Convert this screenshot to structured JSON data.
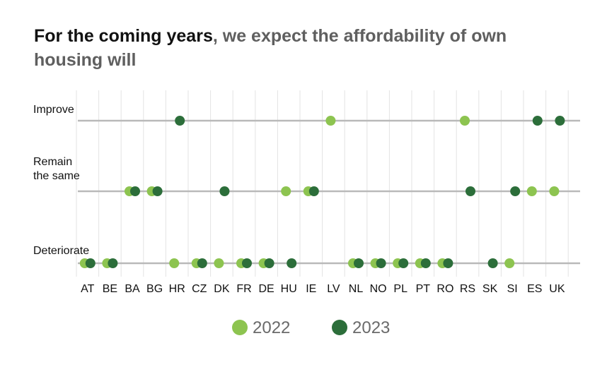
{
  "header": {
    "title_strong": "For the coming years",
    "title_rest": ", we expect the affordability of own housing will"
  },
  "chart_data": {
    "type": "scatter",
    "title": "For the coming years, we expect the affordability of own housing will",
    "categories_x": [
      "AT",
      "BE",
      "BA",
      "BG",
      "HR",
      "CZ",
      "DK",
      "FR",
      "DE",
      "HU",
      "IE",
      "LV",
      "NL",
      "NO",
      "PL",
      "PT",
      "RO",
      "RS",
      "SK",
      "SI",
      "ES",
      "UK"
    ],
    "categories_y": [
      "Improve",
      "Remain the same",
      "Deteriorate"
    ],
    "y_labels_display": [
      [
        "Improve"
      ],
      [
        "Remain",
        "the same"
      ],
      [
        "Deteriorate"
      ]
    ],
    "colors": {
      "2022": "#8dc450",
      "2023": "#2c6e3a",
      "axis": "#b9b9b9",
      "grid": "#e3e3e3"
    },
    "series": [
      {
        "name": "2022",
        "points": [
          {
            "x": "AT",
            "y": "Deteriorate"
          },
          {
            "x": "BE",
            "y": "Deteriorate"
          },
          {
            "x": "BA",
            "y": "Remain the same"
          },
          {
            "x": "BG",
            "y": "Remain the same"
          },
          {
            "x": "HR",
            "y": "Deteriorate"
          },
          {
            "x": "CZ",
            "y": "Deteriorate"
          },
          {
            "x": "DK",
            "y": "Deteriorate"
          },
          {
            "x": "FR",
            "y": "Deteriorate"
          },
          {
            "x": "DE",
            "y": "Deteriorate"
          },
          {
            "x": "HU",
            "y": "Remain the same"
          },
          {
            "x": "IE",
            "y": "Remain the same"
          },
          {
            "x": "LV",
            "y": "Improve"
          },
          {
            "x": "NL",
            "y": "Deteriorate"
          },
          {
            "x": "NO",
            "y": "Deteriorate"
          },
          {
            "x": "PL",
            "y": "Deteriorate"
          },
          {
            "x": "PT",
            "y": "Deteriorate"
          },
          {
            "x": "RO",
            "y": "Deteriorate"
          },
          {
            "x": "RS",
            "y": "Improve"
          },
          {
            "x": "SI",
            "y": "Deteriorate"
          },
          {
            "x": "ES",
            "y": "Remain the same"
          },
          {
            "x": "UK",
            "y": "Remain the same"
          }
        ]
      },
      {
        "name": "2023",
        "points": [
          {
            "x": "AT",
            "y": "Deteriorate"
          },
          {
            "x": "BE",
            "y": "Deteriorate"
          },
          {
            "x": "BA",
            "y": "Remain the same"
          },
          {
            "x": "BG",
            "y": "Remain the same"
          },
          {
            "x": "HR",
            "y": "Improve"
          },
          {
            "x": "CZ",
            "y": "Deteriorate"
          },
          {
            "x": "DK",
            "y": "Remain the same"
          },
          {
            "x": "FR",
            "y": "Deteriorate"
          },
          {
            "x": "DE",
            "y": "Deteriorate"
          },
          {
            "x": "HU",
            "y": "Deteriorate"
          },
          {
            "x": "IE",
            "y": "Remain the same"
          },
          {
            "x": "NL",
            "y": "Deteriorate"
          },
          {
            "x": "NO",
            "y": "Deteriorate"
          },
          {
            "x": "PL",
            "y": "Deteriorate"
          },
          {
            "x": "PT",
            "y": "Deteriorate"
          },
          {
            "x": "RO",
            "y": "Deteriorate"
          },
          {
            "x": "RS",
            "y": "Remain the same"
          },
          {
            "x": "SK",
            "y": "Deteriorate"
          },
          {
            "x": "SI",
            "y": "Remain the same"
          },
          {
            "x": "ES",
            "y": "Improve"
          },
          {
            "x": "UK",
            "y": "Improve"
          }
        ]
      }
    ],
    "legend": {
      "position": "bottom",
      "entries": [
        "2022",
        "2023"
      ]
    },
    "grid": true
  }
}
